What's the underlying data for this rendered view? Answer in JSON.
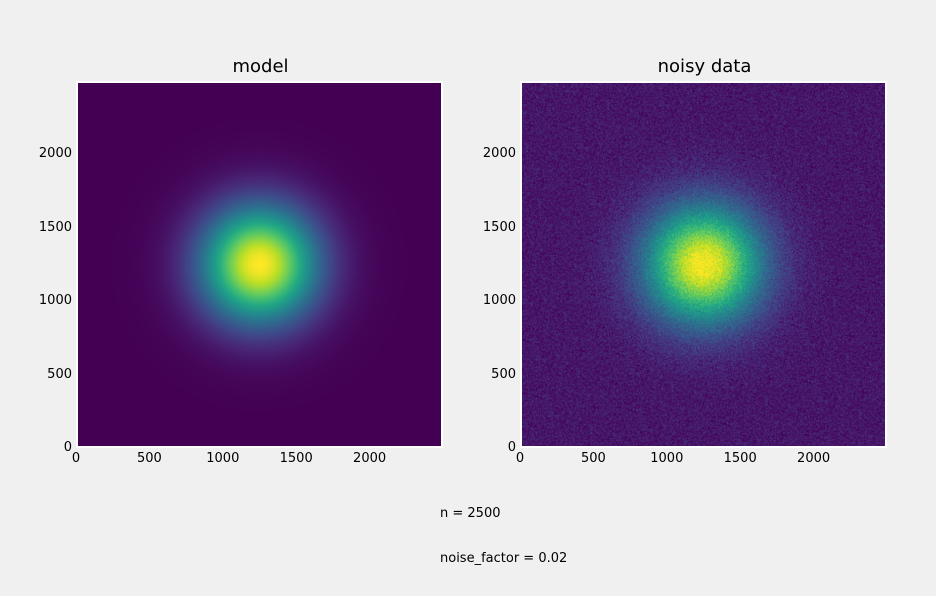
{
  "chart_data": [
    {
      "type": "heatmap",
      "title": "model",
      "colormap": "viridis",
      "extent": [
        0,
        2500,
        0,
        2500
      ],
      "x_ticks": [
        "0",
        "500",
        "1000",
        "1500",
        "2000"
      ],
      "y_ticks": [
        "0",
        "500",
        "1000",
        "1500",
        "2000"
      ],
      "center": [
        1250,
        1250
      ],
      "sigma": 280,
      "noise": 0.0
    },
    {
      "type": "heatmap",
      "title": "noisy data",
      "colormap": "viridis",
      "extent": [
        0,
        2500,
        0,
        2500
      ],
      "x_ticks": [
        "0",
        "500",
        "1000",
        "1500",
        "2000"
      ],
      "y_ticks": [
        "0",
        "500",
        "1000",
        "1500",
        "2000"
      ],
      "center": [
        1250,
        1250
      ],
      "sigma": 280,
      "noise": 0.02
    }
  ],
  "annotation": {
    "n": "n = 2500",
    "noise_factor": "noise_factor = 0.02"
  }
}
